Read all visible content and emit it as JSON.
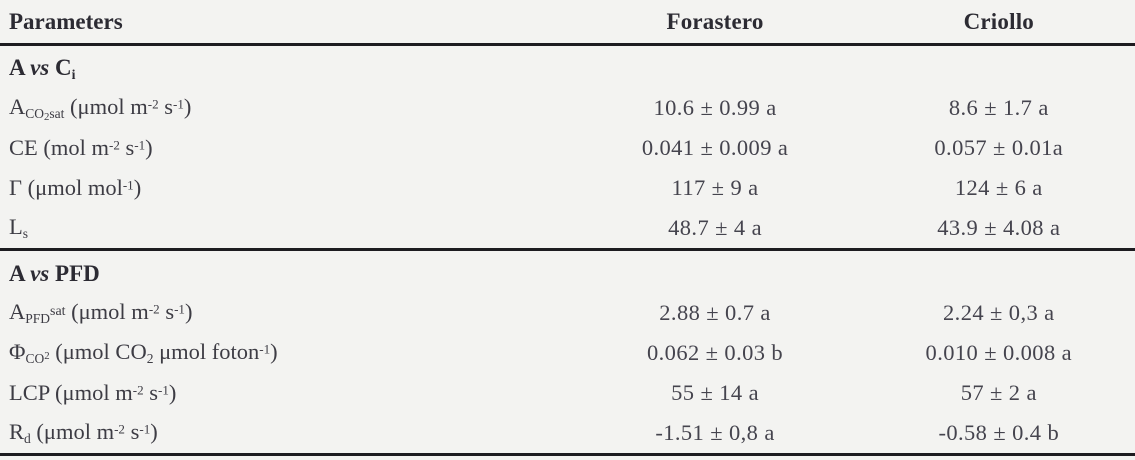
{
  "table": {
    "columns": [
      "Parameters",
      "Forastero",
      "Criollo"
    ],
    "colors": {
      "background": "#f3f3f1",
      "text": "#3d3c44",
      "header_text": "#2c2b33",
      "rule": "#1d1c20"
    },
    "sections": [
      {
        "title_parts": [
          {
            "t": "A "
          },
          {
            "t": "vs",
            "style": "italic"
          },
          {
            "t": " C"
          },
          {
            "t": "i",
            "style": "sub"
          }
        ],
        "rows": [
          {
            "param_parts": [
              {
                "t": "A"
              },
              {
                "t": "CO",
                "style": "sub"
              },
              {
                "t": "2",
                "style": "subsub"
              },
              {
                "t": "sat",
                "style": "sub"
              },
              {
                "t": " (μmol m"
              },
              {
                "t": "-2",
                "style": "sup"
              },
              {
                "t": " s"
              },
              {
                "t": "-1",
                "style": "sup"
              },
              {
                "t": ")"
              }
            ],
            "forastero": "10.6 ± 0.99 a",
            "criollo": "8.6 ± 1.7 a"
          },
          {
            "param_parts": [
              {
                "t": "CE (mol m"
              },
              {
                "t": "-2",
                "style": "sup"
              },
              {
                "t": " s"
              },
              {
                "t": "-1",
                "style": "sup"
              },
              {
                "t": ")"
              }
            ],
            "forastero": "0.041 ± 0.009 a",
            "criollo": "0.057 ± 0.01a"
          },
          {
            "param_parts": [
              {
                "t": "Γ (μmol mol"
              },
              {
                "t": "-1",
                "style": "sup"
              },
              {
                "t": ")"
              }
            ],
            "forastero": "117 ± 9 a",
            "criollo": "124 ± 6 a"
          },
          {
            "param_parts": [
              {
                "t": "L"
              },
              {
                "t": "s",
                "style": "sub"
              }
            ],
            "forastero": "48.7 ± 4 a",
            "criollo": "43.9 ± 4.08 a"
          }
        ]
      },
      {
        "title_parts": [
          {
            "t": "A "
          },
          {
            "t": "vs",
            "style": "italic"
          },
          {
            "t": " PFD"
          }
        ],
        "rows": [
          {
            "param_parts": [
              {
                "t": "A"
              },
              {
                "t": "PFD",
                "style": "sub"
              },
              {
                "t": "sat",
                "style": "supsm"
              },
              {
                "t": " (μmol m"
              },
              {
                "t": "-2",
                "style": "sup"
              },
              {
                "t": " s"
              },
              {
                "t": "-1",
                "style": "sup"
              },
              {
                "t": ")"
              }
            ],
            "forastero": "2.88 ± 0.7 a",
            "criollo": "2.24 ± 0,3 a"
          },
          {
            "param_parts": [
              {
                "t": "Φ"
              },
              {
                "t": "CO",
                "style": "sub"
              },
              {
                "t": "2",
                "style": "subsup"
              },
              {
                "t": " (μmol CO"
              },
              {
                "t": "2",
                "style": "sub"
              },
              {
                "t": " μmol foton"
              },
              {
                "t": "-1",
                "style": "sup"
              },
              {
                "t": ")"
              }
            ],
            "forastero": "0.062 ± 0.03 b",
            "criollo": "0.010 ± 0.008 a"
          },
          {
            "param_parts": [
              {
                "t": "LCP (μmol m"
              },
              {
                "t": "-2",
                "style": "sup"
              },
              {
                "t": " s"
              },
              {
                "t": "-1",
                "style": "sup"
              },
              {
                "t": ")"
              }
            ],
            "forastero": "55 ± 14 a",
            "criollo": "57 ± 2 a"
          },
          {
            "param_parts": [
              {
                "t": "R"
              },
              {
                "t": "d",
                "style": "sub"
              },
              {
                "t": " (μmol m"
              },
              {
                "t": "-2",
                "style": "sup"
              },
              {
                "t": " s"
              },
              {
                "t": "-1",
                "style": "sup"
              },
              {
                "t": ")"
              }
            ],
            "forastero": "-1.51 ± 0,8 a",
            "criollo": "-0.58 ± 0.4 b"
          }
        ]
      }
    ]
  }
}
